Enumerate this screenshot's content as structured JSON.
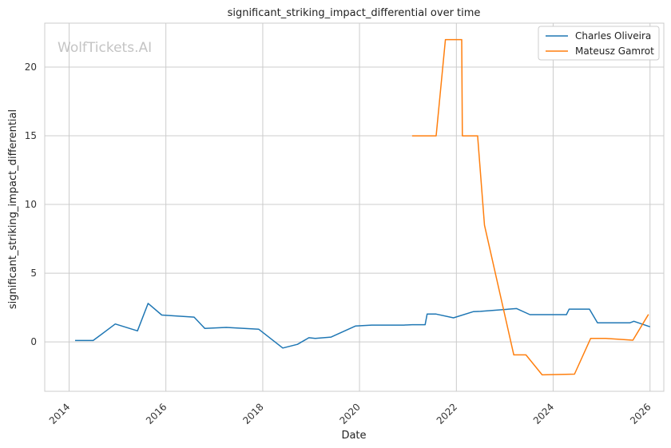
{
  "watermark": "WolfTickets.AI",
  "chart_data": {
    "type": "line",
    "title": "significant_striking_impact_differential over time",
    "xlabel": "Date",
    "ylabel": "significant_striking_impact_differential",
    "x_type": "date",
    "xlim": [
      "2013-07-01",
      "2026-04-15"
    ],
    "ylim": [
      -3.6,
      23.2
    ],
    "x_ticks": [
      "2014",
      "2016",
      "2018",
      "2020",
      "2022",
      "2024",
      "2026"
    ],
    "y_ticks": [
      0,
      5,
      10,
      15,
      20
    ],
    "grid": true,
    "legend_position": "top-right",
    "series": [
      {
        "name": "Charles Oliveira",
        "color": "#1f77b4",
        "points": [
          [
            "2014-02-15",
            0.1
          ],
          [
            "2014-07-01",
            0.1
          ],
          [
            "2014-12-15",
            1.3
          ],
          [
            "2015-06-01",
            0.8
          ],
          [
            "2015-08-20",
            2.8
          ],
          [
            "2015-12-01",
            1.95
          ],
          [
            "2016-08-01",
            1.8
          ],
          [
            "2016-10-20",
            0.98
          ],
          [
            "2017-04-01",
            1.05
          ],
          [
            "2017-12-01",
            0.92
          ],
          [
            "2018-06-01",
            -0.45
          ],
          [
            "2018-09-20",
            -0.18
          ],
          [
            "2018-12-15",
            0.3
          ],
          [
            "2019-02-01",
            0.25
          ],
          [
            "2019-06-01",
            0.35
          ],
          [
            "2019-12-01",
            1.15
          ],
          [
            "2020-04-01",
            1.22
          ],
          [
            "2020-12-01",
            1.22
          ],
          [
            "2021-02-01",
            1.25
          ],
          [
            "2021-05-10",
            1.25
          ],
          [
            "2021-05-25",
            2.02
          ],
          [
            "2021-08-01",
            2.02
          ],
          [
            "2021-12-10",
            1.75
          ],
          [
            "2022-05-10",
            2.2
          ],
          [
            "2022-07-01",
            2.22
          ],
          [
            "2023-04-01",
            2.42
          ],
          [
            "2023-07-10",
            1.98
          ],
          [
            "2024-04-10",
            1.98
          ],
          [
            "2024-05-01",
            2.38
          ],
          [
            "2024-10-01",
            2.38
          ],
          [
            "2024-12-01",
            1.38
          ],
          [
            "2025-08-01",
            1.38
          ],
          [
            "2025-09-01",
            1.5
          ],
          [
            "2026-01-01",
            1.1
          ]
        ]
      },
      {
        "name": "Mateusz Gamrot",
        "color": "#ff7f0e",
        "points": [
          [
            "2021-02-01",
            15.0
          ],
          [
            "2021-08-01",
            15.0
          ],
          [
            "2021-10-10",
            22.0
          ],
          [
            "2022-02-10",
            22.0
          ],
          [
            "2022-02-15",
            15.0
          ],
          [
            "2022-06-10",
            15.0
          ],
          [
            "2022-08-01",
            8.5
          ],
          [
            "2023-03-10",
            -0.95
          ],
          [
            "2023-06-10",
            -0.95
          ],
          [
            "2023-10-10",
            -2.4
          ],
          [
            "2024-06-10",
            -2.35
          ],
          [
            "2024-10-10",
            0.25
          ],
          [
            "2025-02-01",
            0.25
          ],
          [
            "2025-08-25",
            0.12
          ],
          [
            "2025-12-20",
            2.0
          ]
        ]
      }
    ]
  }
}
